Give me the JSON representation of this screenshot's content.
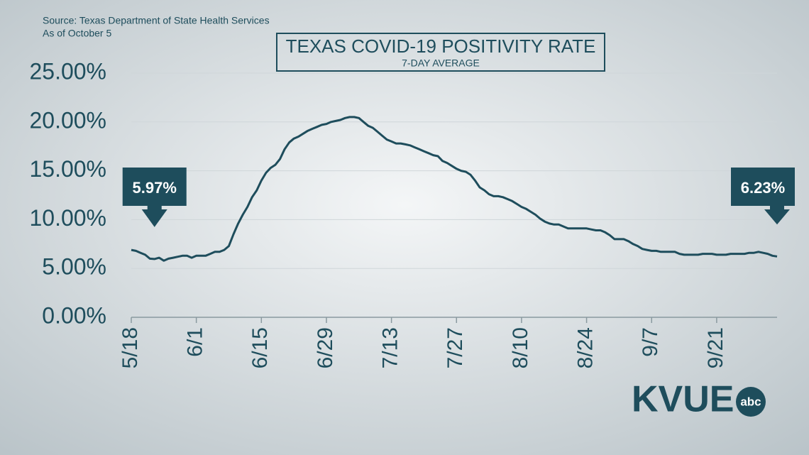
{
  "chart_data": {
    "type": "line",
    "title": "TEXAS COVID-19 POSITIVITY RATE",
    "subtitle": "7-DAY AVERAGE",
    "source": "Source: Texas Department of State Health Services",
    "note": "As of October 5",
    "logo": {
      "main": "KVUE",
      "badge": "abc"
    },
    "color": "#1e4d5c",
    "categories": [
      "5/18",
      null,
      null,
      null,
      null,
      null,
      null,
      null,
      null,
      null,
      null,
      null,
      null,
      null,
      "6/1",
      null,
      null,
      null,
      null,
      null,
      null,
      null,
      null,
      null,
      null,
      null,
      null,
      null,
      "6/15",
      null,
      null,
      null,
      null,
      null,
      null,
      null,
      null,
      null,
      null,
      null,
      null,
      null,
      "6/29",
      null,
      null,
      null,
      null,
      null,
      null,
      null,
      null,
      null,
      null,
      null,
      null,
      null,
      "7/13",
      null,
      null,
      null,
      null,
      null,
      null,
      null,
      null,
      null,
      null,
      null,
      null,
      null,
      "7/27",
      null,
      null,
      null,
      null,
      null,
      null,
      null,
      null,
      null,
      null,
      null,
      null,
      null,
      "8/10",
      null,
      null,
      null,
      null,
      null,
      null,
      null,
      null,
      null,
      null,
      null,
      null,
      null,
      "8/24",
      null,
      null,
      null,
      null,
      null,
      null,
      null,
      null,
      null,
      null,
      null,
      null,
      null,
      "9/7",
      null,
      null,
      null,
      null,
      null,
      null,
      null,
      null,
      null,
      null,
      null,
      null,
      null,
      "9/21",
      null,
      null,
      null,
      null,
      null,
      null,
      null,
      null,
      null,
      null,
      null,
      null,
      null
    ],
    "values": [
      6.9,
      6.8,
      6.6,
      6.4,
      6.0,
      5.97,
      6.1,
      5.8,
      6.0,
      6.1,
      6.2,
      6.3,
      6.3,
      6.1,
      6.3,
      6.3,
      6.3,
      6.5,
      6.7,
      6.7,
      6.9,
      7.3,
      8.5,
      9.6,
      10.5,
      11.3,
      12.3,
      13.0,
      14.0,
      14.8,
      15.3,
      15.6,
      16.2,
      17.2,
      17.9,
      18.3,
      18.5,
      18.8,
      19.1,
      19.3,
      19.5,
      19.7,
      19.8,
      20.0,
      20.1,
      20.2,
      20.4,
      20.5,
      20.5,
      20.4,
      20.0,
      19.6,
      19.4,
      19.0,
      18.6,
      18.2,
      18.0,
      17.8,
      17.8,
      17.7,
      17.6,
      17.4,
      17.2,
      17.0,
      16.8,
      16.6,
      16.5,
      16.0,
      15.8,
      15.5,
      15.2,
      15.0,
      14.9,
      14.6,
      14.0,
      13.3,
      13.0,
      12.6,
      12.4,
      12.4,
      12.3,
      12.1,
      11.9,
      11.6,
      11.3,
      11.1,
      10.8,
      10.5,
      10.1,
      9.8,
      9.6,
      9.5,
      9.5,
      9.3,
      9.1,
      9.1,
      9.1,
      9.1,
      9.1,
      9.0,
      8.9,
      8.9,
      8.7,
      8.4,
      8.0,
      8.0,
      8.0,
      7.8,
      7.5,
      7.3,
      7.0,
      6.9,
      6.8,
      6.8,
      6.7,
      6.7,
      6.7,
      6.7,
      6.5,
      6.4,
      6.4,
      6.4,
      6.4,
      6.5,
      6.5,
      6.5,
      6.4,
      6.4,
      6.4,
      6.5,
      6.5,
      6.5,
      6.5,
      6.6,
      6.6,
      6.7,
      6.6,
      6.5,
      6.3,
      6.23
    ],
    "value_labels": [
      null,
      null,
      null,
      null,
      null,
      "5.97%",
      null,
      null,
      null,
      null,
      null,
      null,
      null,
      null,
      null,
      null,
      null,
      null,
      null,
      null,
      null,
      null,
      null,
      null,
      null,
      null,
      null,
      null,
      null,
      null,
      null,
      null,
      null,
      null,
      null,
      null,
      null,
      null,
      null,
      null,
      null,
      null,
      null,
      null,
      null,
      null,
      null,
      null,
      null,
      null,
      null,
      null,
      null,
      null,
      null,
      null,
      null,
      null,
      null,
      null,
      null,
      null,
      null,
      null,
      null,
      null,
      null,
      null,
      null,
      null,
      null,
      null,
      null,
      null,
      null,
      null,
      null,
      null,
      null,
      null,
      null,
      null,
      null,
      null,
      null,
      null,
      null,
      null,
      null,
      null,
      null,
      null,
      null,
      null,
      null,
      null,
      null,
      null,
      null,
      null,
      null,
      null,
      null,
      null,
      null,
      null,
      null,
      null,
      null,
      null,
      null,
      null,
      null,
      null,
      null,
      null,
      null,
      null,
      null,
      null,
      null,
      null,
      null,
      null,
      null,
      null,
      null,
      null,
      null,
      null,
      null,
      null,
      null,
      null,
      null,
      null,
      null,
      null,
      null,
      "6.23%"
    ],
    "ylim": [
      0,
      25
    ],
    "yticks": [
      {
        "value": 0,
        "label": "0.00%"
      },
      {
        "value": 5,
        "label": "5.00%"
      },
      {
        "value": 10,
        "label": "10.00%"
      },
      {
        "value": 15,
        "label": "15.00%"
      },
      {
        "value": 20,
        "label": "20.00%"
      },
      {
        "value": 25,
        "label": "25.00%"
      }
    ],
    "grid": true
  }
}
